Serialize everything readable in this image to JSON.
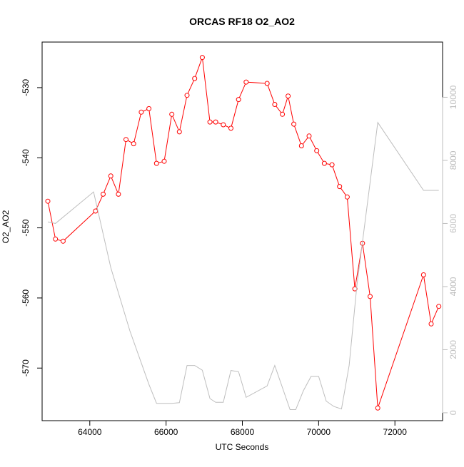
{
  "chart_data": {
    "type": "line",
    "title": "ORCAS RF18 O2_AO2",
    "xlabel": "UTC Seconds",
    "ylabel": "O2_AO2",
    "xlim": [
      62750,
      73250
    ],
    "ylim": [
      -577.5,
      -523.5
    ],
    "y2lim": [
      -250,
      11750
    ],
    "x_ticks": [
      64000,
      66000,
      68000,
      70000,
      72000
    ],
    "x_tick_labels": [
      "64000",
      "66000",
      "68000",
      "70000",
      "72000"
    ],
    "y_ticks": [
      -570,
      -560,
      -550,
      -540,
      -530
    ],
    "y_tick_labels": [
      "-570",
      "-560",
      "-550",
      "-540",
      "-530"
    ],
    "y2_ticks": [
      0,
      2000,
      4000,
      6000,
      8000,
      10000
    ],
    "y2_tick_labels": [
      "0",
      "2000",
      "4000",
      "6000",
      "8000",
      "10000"
    ],
    "grid": false,
    "series": [
      {
        "axis": "left",
        "color": "#ff0000",
        "marker": "open-circle",
        "points": [
          [
            62900,
            -546.2
          ],
          [
            63100,
            -551.6
          ],
          [
            63300,
            -551.9
          ],
          [
            64150,
            -547.6
          ],
          [
            64350,
            -545.2
          ],
          [
            64550,
            -542.6
          ],
          [
            64750,
            -545.2
          ],
          [
            64950,
            -537.4
          ],
          [
            65150,
            -538.0
          ],
          [
            65350,
            -533.5
          ],
          [
            65550,
            -533.0
          ],
          [
            65750,
            -540.8
          ],
          [
            65950,
            -540.5
          ],
          [
            66150,
            -533.8
          ],
          [
            66350,
            -536.3
          ],
          [
            66550,
            -531.1
          ],
          [
            66750,
            -528.7
          ],
          [
            66950,
            -525.7
          ],
          [
            67150,
            -534.9
          ],
          [
            67300,
            -534.9
          ],
          [
            67500,
            -535.3
          ],
          [
            67700,
            -535.8
          ],
          [
            67900,
            -531.7
          ],
          [
            68100,
            -529.2
          ],
          [
            68650,
            -529.4
          ],
          [
            68850,
            -532.4
          ],
          [
            69050,
            -533.8
          ],
          [
            69200,
            -531.2
          ],
          [
            69350,
            -535.2
          ],
          [
            69550,
            -538.3
          ],
          [
            69750,
            -536.9
          ],
          [
            69950,
            -539.0
          ],
          [
            70150,
            -540.8
          ],
          [
            70350,
            -541.0
          ],
          [
            70550,
            -544.1
          ],
          [
            70750,
            -545.6
          ],
          [
            70950,
            -558.7
          ],
          [
            71150,
            -552.2
          ],
          [
            71350,
            -559.8
          ],
          [
            71550,
            -575.7
          ],
          [
            72750,
            -556.7
          ],
          [
            72950,
            -563.7
          ],
          [
            73150,
            -561.2
          ]
        ]
      },
      {
        "axis": "right",
        "color": "#bebebe",
        "marker": "none",
        "points": [
          [
            62900,
            6050
          ],
          [
            63100,
            6000
          ],
          [
            64100,
            7000
          ],
          [
            64550,
            4600
          ],
          [
            65050,
            2600
          ],
          [
            65550,
            900
          ],
          [
            65750,
            300
          ],
          [
            66150,
            300
          ],
          [
            66350,
            320
          ],
          [
            66550,
            1500
          ],
          [
            66750,
            1500
          ],
          [
            66950,
            1350
          ],
          [
            67150,
            450
          ],
          [
            67300,
            330
          ],
          [
            67500,
            330
          ],
          [
            67700,
            1340
          ],
          [
            67900,
            1300
          ],
          [
            68100,
            490
          ],
          [
            68650,
            850
          ],
          [
            68850,
            1500
          ],
          [
            69050,
            800
          ],
          [
            69250,
            100
          ],
          [
            69400,
            100
          ],
          [
            69600,
            700
          ],
          [
            69800,
            1150
          ],
          [
            70000,
            1150
          ],
          [
            70200,
            370
          ],
          [
            70400,
            200
          ],
          [
            70600,
            120
          ],
          [
            70800,
            1500
          ],
          [
            71000,
            4000
          ],
          [
            71550,
            9200
          ],
          [
            72750,
            7050
          ],
          [
            73150,
            7050
          ]
        ]
      }
    ]
  }
}
